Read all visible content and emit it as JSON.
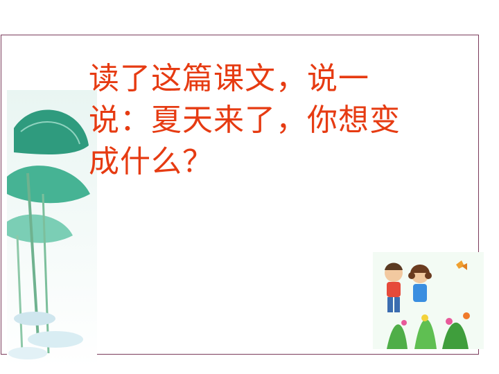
{
  "slide": {
    "lines": [
      "读了这篇课文，说一",
      "说：夏天来了，你想变",
      "成什么？"
    ]
  },
  "colors": {
    "text": "#e63b12",
    "frame": "#7a3a5a",
    "leaf": "#3aa98a"
  },
  "images": {
    "left": "lotus-leaves-illustration",
    "right": "children-in-flower-garden-illustration"
  }
}
